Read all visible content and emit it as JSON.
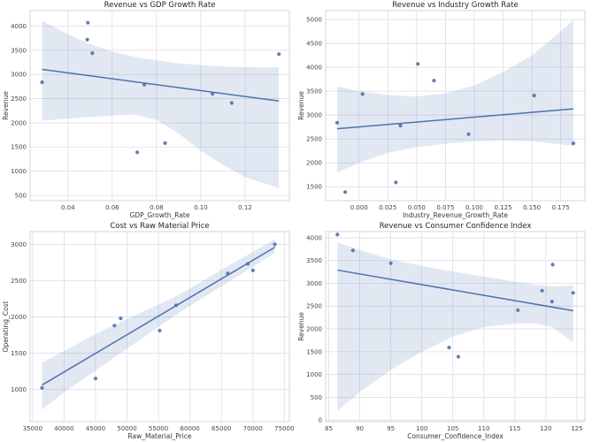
{
  "figure": {
    "background": "#ffffff",
    "layout": "2x2 scatter regression grid"
  },
  "style": {
    "point_color": "#4c72b0",
    "line_color": "#4c72b0",
    "band_color": "#4c72b0",
    "band_opacity": 0.16,
    "grid_color": "#dcdee8",
    "spine_color": "#ccd0da",
    "title_color": "#262626",
    "tick_color": "#45454d",
    "label_color": "#37373e"
  },
  "chart_data": [
    {
      "type": "scatter",
      "title": "Revenue vs GDP Growth Rate",
      "xlabel": "GDP_Growth_Rate",
      "ylabel": "Revenue",
      "xlim": [
        0.0229,
        0.14
      ],
      "ylim": [
        390,
        4320
      ],
      "x_ticks": [
        0.04,
        0.06,
        0.08,
        0.1,
        0.12
      ],
      "x_tick_labels": [
        "0.04",
        "0.06",
        "0.08",
        "0.10",
        "0.12"
      ],
      "y_ticks": [
        500,
        1000,
        1500,
        2000,
        2500,
        3000,
        3500,
        4000
      ],
      "y_tick_labels": [
        "500",
        "1000",
        "1500",
        "2000",
        "2500",
        "3000",
        "3500",
        "4000"
      ],
      "points": [
        [
          0.0283,
          2840
        ],
        [
          0.049,
          4070
        ],
        [
          0.0487,
          3720
        ],
        [
          0.051,
          3440
        ],
        [
          0.0713,
          1390
        ],
        [
          0.0745,
          2790
        ],
        [
          0.0839,
          1580
        ],
        [
          0.1053,
          2600
        ],
        [
          0.114,
          2410
        ],
        [
          0.1353,
          3420
        ]
      ],
      "regression_line": {
        "x": [
          0.0283,
          0.1353
        ],
        "y": [
          3105,
          2450
        ]
      },
      "confidence_band": {
        "x": [
          0.0283,
          0.04,
          0.05,
          0.06,
          0.07,
          0.08,
          0.09,
          0.1,
          0.11,
          0.12,
          0.1353
        ],
        "upper": [
          4110,
          3830,
          3630,
          3470,
          3360,
          3290,
          3230,
          3190,
          3165,
          3150,
          3145
        ],
        "lower": [
          2040,
          2090,
          2120,
          2150,
          2170,
          2060,
          1780,
          1420,
          1130,
          880,
          650
        ]
      }
    },
    {
      "type": "scatter",
      "title": "Revenue vs Industry Growth Rate",
      "xlabel": "Industry_Revenue_Growth_Rate",
      "ylabel": "Revenue",
      "xlim": [
        -0.029,
        0.196
      ],
      "ylim": [
        1210,
        5185
      ],
      "x_ticks": [
        0.0,
        0.025,
        0.05,
        0.075,
        0.1,
        0.125,
        0.15,
        0.175
      ],
      "x_tick_labels": [
        "0.000",
        "0.025",
        "0.050",
        "0.075",
        "0.100",
        "0.125",
        "0.150",
        "0.175"
      ],
      "y_ticks": [
        1500,
        2000,
        2500,
        3000,
        3500,
        4000,
        4500,
        5000
      ],
      "y_tick_labels": [
        "1500",
        "2000",
        "2500",
        "3000",
        "3500",
        "4000",
        "4500",
        "5000"
      ],
      "points": [
        [
          -0.019,
          2840
        ],
        [
          -0.012,
          1390
        ],
        [
          0.003,
          3440
        ],
        [
          0.032,
          1590
        ],
        [
          0.036,
          2780
        ],
        [
          0.051,
          4070
        ],
        [
          0.065,
          3720
        ],
        [
          0.095,
          2600
        ],
        [
          0.152,
          3410
        ],
        [
          0.186,
          2410
        ]
      ],
      "regression_line": {
        "x": [
          -0.019,
          0.186
        ],
        "y": [
          2715,
          3130
        ]
      },
      "confidence_band": {
        "x": [
          -0.019,
          0.0,
          0.025,
          0.05,
          0.075,
          0.1,
          0.125,
          0.15,
          0.175,
          0.186
        ],
        "upper": [
          3600,
          3500,
          3420,
          3390,
          3450,
          3620,
          3900,
          4250,
          4750,
          5000
        ],
        "lower": [
          1800,
          2000,
          2210,
          2330,
          2400,
          2450,
          2465,
          2450,
          2390,
          2350
        ]
      }
    },
    {
      "type": "scatter",
      "title": "Cost vs Raw Material Price",
      "xlabel": "Raw_Material_Price",
      "ylabel": "Operating_Cost",
      "xlim": [
        34600,
        75800
      ],
      "ylim": [
        555,
        3175
      ],
      "x_ticks": [
        35000,
        40000,
        45000,
        50000,
        55000,
        60000,
        65000,
        70000,
        75000
      ],
      "x_tick_labels": [
        "35000",
        "40000",
        "45000",
        "50000",
        "55000",
        "60000",
        "65000",
        "70000",
        "75000"
      ],
      "y_ticks": [
        1000,
        1500,
        2000,
        2500,
        3000
      ],
      "y_tick_labels": [
        "1000",
        "1500",
        "2000",
        "2500",
        "3000"
      ],
      "points": [
        [
          36500,
          1020
        ],
        [
          45000,
          1150
        ],
        [
          48000,
          1880
        ],
        [
          49000,
          1980
        ],
        [
          55200,
          1810
        ],
        [
          57800,
          2160
        ],
        [
          66000,
          2600
        ],
        [
          69200,
          2730
        ],
        [
          70000,
          2640
        ],
        [
          73500,
          3000
        ]
      ],
      "regression_line": {
        "x": [
          36500,
          73500
        ],
        "y": [
          1060,
          2960
        ]
      },
      "confidence_band": {
        "x": [
          36500,
          40000,
          45000,
          50000,
          55000,
          57500,
          60000,
          65000,
          70000,
          73500
        ],
        "upper": [
          1370,
          1530,
          1760,
          1970,
          2170,
          2270,
          2390,
          2650,
          2895,
          3070
        ],
        "lower": [
          720,
          960,
          1260,
          1560,
          1860,
          2010,
          2150,
          2420,
          2690,
          2880
        ]
      }
    },
    {
      "type": "scatter",
      "title": "Revenue vs Consumer Confidence Index",
      "xlabel": "Consumer_Confidence_Index",
      "ylabel": "Revenue",
      "xlim": [
        84.5,
        126.3
      ],
      "ylim": [
        -35,
        4135
      ],
      "x_ticks": [
        85,
        90,
        95,
        100,
        105,
        110,
        115,
        120,
        125
      ],
      "x_tick_labels": [
        "85",
        "90",
        "95",
        "100",
        "105",
        "110",
        "115",
        "120",
        "125"
      ],
      "y_ticks": [
        0,
        500,
        1000,
        1500,
        2000,
        2500,
        3000,
        3500,
        4000
      ],
      "y_tick_labels": [
        "0",
        "500",
        "1000",
        "1500",
        "2000",
        "2500",
        "3000",
        "3500",
        "4000"
      ],
      "points": [
        [
          86.4,
          4070
        ],
        [
          88.9,
          3720
        ],
        [
          95.0,
          3440
        ],
        [
          104.4,
          1590
        ],
        [
          105.9,
          1390
        ],
        [
          115.5,
          2410
        ],
        [
          119.4,
          2840
        ],
        [
          121.1,
          3410
        ],
        [
          121.0,
          2600
        ],
        [
          124.4,
          2790
        ]
      ],
      "regression_line": {
        "x": [
          86.4,
          124.4
        ],
        "y": [
          3290,
          2400
        ]
      },
      "confidence_band": {
        "x": [
          86.4,
          90,
          95,
          100,
          105,
          110,
          115,
          118,
          121,
          124.4
        ],
        "upper": [
          3900,
          3730,
          3530,
          3380,
          3260,
          3150,
          3040,
          2980,
          2930,
          2950
        ],
        "lower": [
          200,
          620,
          1100,
          1500,
          1830,
          2040,
          2115,
          2120,
          2050,
          1700
        ]
      }
    }
  ]
}
